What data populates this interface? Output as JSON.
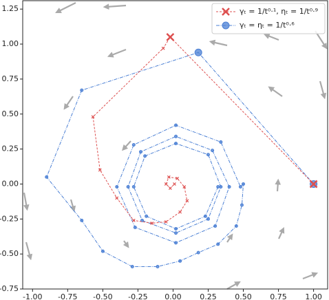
{
  "chart_data": {
    "type": "line",
    "xlim": [
      -1.07,
      1.1
    ],
    "ylim": [
      -0.75,
      1.31
    ],
    "xticks": [
      {
        "value": -1,
        "label": "-1.00"
      },
      {
        "value": -0.75,
        "label": "-0.75"
      },
      {
        "value": -0.5,
        "label": "-0.50"
      },
      {
        "value": -0.25,
        "label": "-0.25"
      },
      {
        "value": 0,
        "label": "0.00"
      },
      {
        "value": 0.25,
        "label": "0.25"
      },
      {
        "value": 0.5,
        "label": "0.50"
      },
      {
        "value": 0.75,
        "label": "0.75"
      },
      {
        "value": 1,
        "label": "1.00"
      }
    ],
    "yticks": [
      {
        "value": -0.75,
        "label": "-0.75"
      },
      {
        "value": -0.5,
        "label": "-0.50"
      },
      {
        "value": -0.25,
        "label": "-0.25"
      },
      {
        "value": 0,
        "label": "0.00"
      },
      {
        "value": 0.25,
        "label": "0.25"
      },
      {
        "value": 0.5,
        "label": "0.50"
      },
      {
        "value": 0.75,
        "label": "0.75"
      },
      {
        "value": 1,
        "label": "1.00"
      },
      {
        "value": 1.25,
        "label": "1.25"
      }
    ],
    "legend": "upper right",
    "series": [
      {
        "name": "γₜ = 1/t⁰·¹, ηₜ = 1/t⁰·⁹",
        "color": "#dd4f4f",
        "marker": "x",
        "x": [
          1.0,
          -0.02,
          -0.07,
          -0.57,
          -0.52,
          -0.4,
          -0.28,
          -0.15,
          -0.05,
          0.05,
          0.1,
          0.08,
          0.03,
          -0.03,
          -0.05,
          -0.02,
          0.01
        ],
        "y": [
          0.0,
          1.05,
          0.97,
          0.48,
          0.1,
          -0.1,
          -0.26,
          -0.28,
          -0.27,
          -0.2,
          -0.12,
          -0.02,
          0.04,
          0.05,
          0.0,
          -0.03,
          0.0
        ]
      },
      {
        "name": "γₜ = ηₜ = 1/t⁰·⁶",
        "color": "#4a7fd4",
        "marker": "o",
        "x": [
          1.0,
          0.18,
          -0.65,
          -0.9,
          -0.65,
          -0.5,
          -0.29,
          -0.11,
          0.05,
          0.18,
          0.32,
          0.45,
          0.49,
          0.5,
          0.48,
          0.34,
          0.02,
          -0.28,
          -0.4,
          -0.27,
          0.02,
          0.3,
          0.4,
          0.28,
          0.02,
          -0.23,
          -0.32,
          -0.22,
          0.02,
          0.25,
          0.34,
          0.25,
          0.02,
          -0.2,
          -0.28,
          -0.19,
          0.02,
          0.23,
          0.32
        ],
        "y": [
          0.0,
          0.94,
          0.67,
          0.05,
          -0.26,
          -0.48,
          -0.59,
          -0.59,
          -0.55,
          -0.49,
          -0.43,
          -0.3,
          -0.15,
          0.0,
          -0.02,
          0.3,
          0.42,
          0.28,
          -0.02,
          -0.31,
          -0.42,
          -0.3,
          -0.02,
          0.24,
          0.34,
          0.23,
          -0.02,
          -0.26,
          -0.35,
          -0.25,
          -0.02,
          0.21,
          0.29,
          0.2,
          -0.02,
          -0.23,
          -0.32,
          -0.23,
          -0.02
        ]
      }
    ]
  }
}
